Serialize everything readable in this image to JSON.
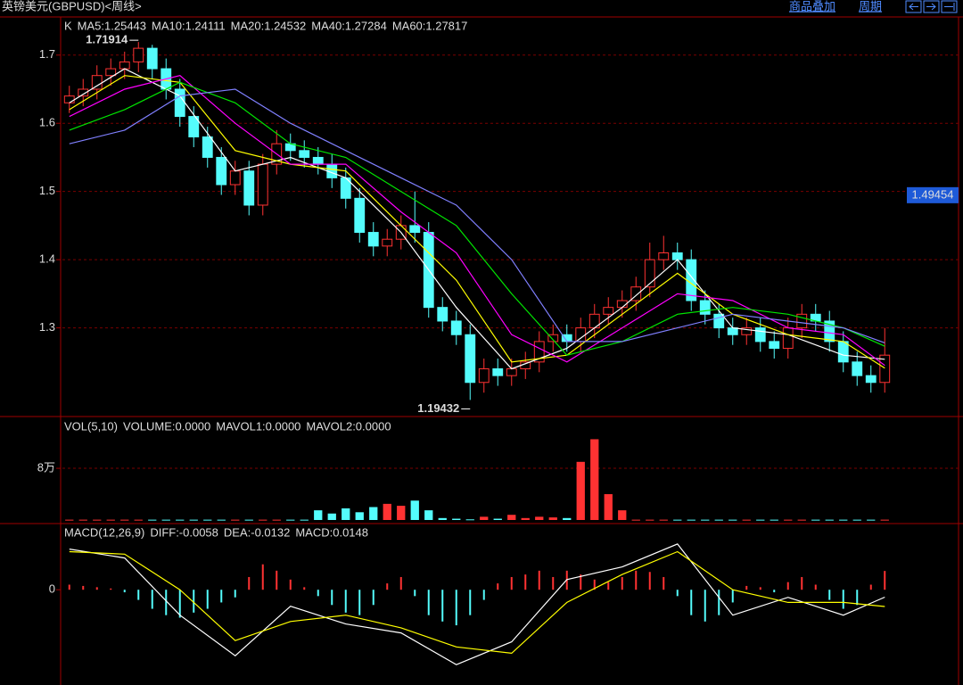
{
  "header": {
    "title": "英镑美元(GBPUSD)<周线>",
    "links": [
      "商品叠加",
      "周期"
    ]
  },
  "chart_data": [
    {
      "type": "candlestick",
      "legend_label": "K",
      "up_color": "#ff3232",
      "down_color": "#54fcfc",
      "open": [
        1.63,
        1.64,
        1.65,
        1.67,
        1.68,
        1.69,
        1.71,
        1.68,
        1.65,
        1.61,
        1.58,
        1.55,
        1.51,
        1.53,
        1.48,
        1.54,
        1.57,
        1.56,
        1.55,
        1.54,
        1.52,
        1.49,
        1.44,
        1.42,
        1.43,
        1.45,
        1.44,
        1.33,
        1.31,
        1.29,
        1.22,
        1.24,
        1.23,
        1.24,
        1.25,
        1.28,
        1.29,
        1.28,
        1.3,
        1.32,
        1.33,
        1.34,
        1.36,
        1.4,
        1.41,
        1.4,
        1.34,
        1.32,
        1.3,
        1.29,
        1.3,
        1.28,
        1.27,
        1.3,
        1.32,
        1.31,
        1.28,
        1.25,
        1.23,
        1.22
      ],
      "high": [
        1.655,
        1.665,
        1.685,
        1.695,
        1.705,
        1.71914,
        1.715,
        1.695,
        1.665,
        1.625,
        1.595,
        1.565,
        1.545,
        1.545,
        1.555,
        1.59,
        1.585,
        1.575,
        1.565,
        1.555,
        1.535,
        1.505,
        1.455,
        1.445,
        1.465,
        1.5,
        1.455,
        1.345,
        1.325,
        1.305,
        1.255,
        1.255,
        1.255,
        1.265,
        1.295,
        1.305,
        1.305,
        1.315,
        1.335,
        1.345,
        1.355,
        1.375,
        1.425,
        1.435,
        1.425,
        1.415,
        1.355,
        1.335,
        1.315,
        1.315,
        1.315,
        1.295,
        1.315,
        1.335,
        1.335,
        1.325,
        1.295,
        1.265,
        1.245,
        1.3
      ],
      "low": [
        1.615,
        1.625,
        1.635,
        1.655,
        1.665,
        1.675,
        1.665,
        1.635,
        1.595,
        1.565,
        1.535,
        1.495,
        1.495,
        1.465,
        1.465,
        1.525,
        1.545,
        1.535,
        1.525,
        1.505,
        1.475,
        1.425,
        1.405,
        1.405,
        1.415,
        1.425,
        1.315,
        1.295,
        1.275,
        1.19432,
        1.205,
        1.215,
        1.215,
        1.225,
        1.235,
        1.265,
        1.265,
        1.265,
        1.285,
        1.305,
        1.315,
        1.325,
        1.345,
        1.385,
        1.385,
        1.325,
        1.305,
        1.285,
        1.275,
        1.275,
        1.265,
        1.255,
        1.255,
        1.285,
        1.295,
        1.265,
        1.235,
        1.215,
        1.205,
        1.205
      ],
      "close": [
        1.64,
        1.65,
        1.67,
        1.68,
        1.69,
        1.71,
        1.68,
        1.65,
        1.61,
        1.58,
        1.55,
        1.51,
        1.53,
        1.48,
        1.54,
        1.57,
        1.56,
        1.55,
        1.54,
        1.52,
        1.49,
        1.44,
        1.42,
        1.43,
        1.45,
        1.44,
        1.33,
        1.31,
        1.29,
        1.22,
        1.24,
        1.23,
        1.24,
        1.25,
        1.28,
        1.29,
        1.28,
        1.3,
        1.32,
        1.33,
        1.34,
        1.36,
        1.4,
        1.41,
        1.4,
        1.34,
        1.32,
        1.3,
        1.29,
        1.3,
        1.28,
        1.27,
        1.3,
        1.32,
        1.31,
        1.28,
        1.25,
        1.23,
        1.22,
        1.26
      ],
      "cursor_price": 1.49454,
      "ylim": [
        1.17,
        1.752
      ],
      "yticks": [
        1.3,
        1.4,
        1.5,
        1.6,
        1.7
      ],
      "grid": true,
      "series": [
        {
          "name": "MA5:1.25443",
          "color": "#ffffff",
          "x": [
            0,
            4,
            8,
            12,
            16,
            20,
            24,
            28,
            32,
            36,
            40,
            44,
            48,
            52,
            56,
            59
          ],
          "values": [
            1.63,
            1.68,
            1.64,
            1.53,
            1.55,
            1.52,
            1.44,
            1.33,
            1.24,
            1.27,
            1.33,
            1.4,
            1.3,
            1.29,
            1.26,
            1.254
          ]
        },
        {
          "name": "MA10:1.24111",
          "color": "#ffff00",
          "x": [
            0,
            4,
            8,
            12,
            16,
            20,
            24,
            28,
            32,
            36,
            40,
            44,
            48,
            52,
            56,
            59
          ],
          "values": [
            1.62,
            1.67,
            1.66,
            1.56,
            1.54,
            1.53,
            1.45,
            1.37,
            1.25,
            1.26,
            1.32,
            1.38,
            1.32,
            1.29,
            1.28,
            1.241
          ]
        },
        {
          "name": "MA20:1.24532",
          "color": "#ff00ff",
          "x": [
            0,
            4,
            8,
            12,
            16,
            20,
            24,
            28,
            32,
            36,
            40,
            44,
            48,
            52,
            56,
            59
          ],
          "values": [
            1.61,
            1.65,
            1.67,
            1.6,
            1.54,
            1.54,
            1.47,
            1.41,
            1.29,
            1.25,
            1.3,
            1.35,
            1.34,
            1.3,
            1.29,
            1.245
          ]
        },
        {
          "name": "MA40:1.27284",
          "color": "#00e600",
          "x": [
            0,
            4,
            8,
            12,
            16,
            20,
            24,
            28,
            32,
            36,
            40,
            44,
            48,
            52,
            56,
            59
          ],
          "values": [
            1.59,
            1.62,
            1.66,
            1.63,
            1.57,
            1.55,
            1.5,
            1.45,
            1.35,
            1.26,
            1.28,
            1.32,
            1.33,
            1.32,
            1.3,
            1.273
          ]
        },
        {
          "name": "MA60:1.27817",
          "color": "#8080ff",
          "x": [
            0,
            4,
            8,
            12,
            16,
            20,
            24,
            28,
            32,
            36,
            40,
            44,
            48,
            52,
            56,
            59
          ],
          "values": [
            1.57,
            1.59,
            1.64,
            1.65,
            1.6,
            1.56,
            1.52,
            1.48,
            1.4,
            1.28,
            1.28,
            1.3,
            1.32,
            1.31,
            1.3,
            1.278
          ]
        }
      ]
    },
    {
      "type": "bar",
      "legend": [
        {
          "text": "VOL(5,10)",
          "color": "#dddddd"
        },
        {
          "text": "VOLUME:0.0000",
          "color": "#dddddd"
        },
        {
          "text": "MAVOL1:0.0000",
          "color": "#ffffff"
        },
        {
          "text": "MAVOL2:0.0000",
          "color": "#ffff00"
        }
      ],
      "values": [
        500,
        500,
        500,
        500,
        500,
        500,
        500,
        500,
        500,
        500,
        500,
        500,
        500,
        500,
        500,
        500,
        500,
        500,
        15000,
        10000,
        18000,
        12000,
        20000,
        25000,
        22000,
        30000,
        15000,
        3000,
        2000,
        1000,
        5000,
        2000,
        8000,
        3000,
        5000,
        4000,
        3000,
        90000,
        125000,
        40000,
        15000,
        500,
        500,
        500,
        500,
        500,
        500,
        500,
        500,
        500,
        500,
        500,
        500,
        500,
        500,
        500,
        500,
        500,
        500,
        500
      ],
      "ylim": [
        0,
        156000
      ],
      "yticks": [
        {
          "value": 80000,
          "label": "8万"
        }
      ],
      "grid": true
    },
    {
      "type": "macd",
      "title": "MACD(12,26,9)",
      "hist_label": "MACD:0.0148",
      "up_color": "#ff3232",
      "down_color": "#54fcfc",
      "values": [
        0.004,
        0.003,
        0.002,
        0.001,
        -0.002,
        -0.008,
        -0.015,
        -0.02,
        -0.022,
        -0.018,
        -0.015,
        -0.01,
        -0.006,
        0.01,
        0.02,
        0.015,
        0.008,
        0.002,
        -0.005,
        -0.012,
        -0.018,
        -0.02,
        -0.012,
        0.005,
        0.01,
        -0.005,
        -0.02,
        -0.025,
        -0.028,
        -0.02,
        -0.008,
        0.005,
        0.01,
        0.012,
        0.015,
        0.01,
        0.015,
        0.012,
        0.008,
        0.006,
        0.01,
        0.015,
        0.014,
        0.01,
        -0.005,
        -0.02,
        -0.025,
        -0.02,
        -0.01,
        0.003,
        0.002,
        -0.002,
        0.006,
        0.01,
        0.004,
        -0.008,
        -0.015,
        -0.012,
        0.004,
        0.0148
      ],
      "ylim": [
        -0.075,
        0.05
      ],
      "yticks": [
        0
      ],
      "series": [
        {
          "name": "DIFF:-0.0058",
          "color": "#ffffff",
          "x": [
            0,
            4,
            8,
            12,
            16,
            20,
            24,
            28,
            32,
            36,
            40,
            44,
            48,
            52,
            56,
            59
          ],
          "values": [
            0.032,
            0.025,
            -0.02,
            -0.052,
            -0.013,
            -0.027,
            -0.034,
            -0.059,
            -0.041,
            0.008,
            0.018,
            0.036,
            -0.02,
            -0.006,
            -0.02,
            -0.0058
          ]
        },
        {
          "name": "DEA:-0.0132",
          "color": "#ffff00",
          "x": [
            0,
            4,
            8,
            12,
            16,
            20,
            24,
            28,
            32,
            36,
            40,
            44,
            48,
            52,
            56,
            59
          ],
          "values": [
            0.03,
            0.028,
            0.0,
            -0.04,
            -0.025,
            -0.02,
            -0.03,
            -0.045,
            -0.05,
            -0.01,
            0.012,
            0.03,
            0.0,
            -0.01,
            -0.01,
            -0.0132
          ]
        }
      ]
    }
  ]
}
